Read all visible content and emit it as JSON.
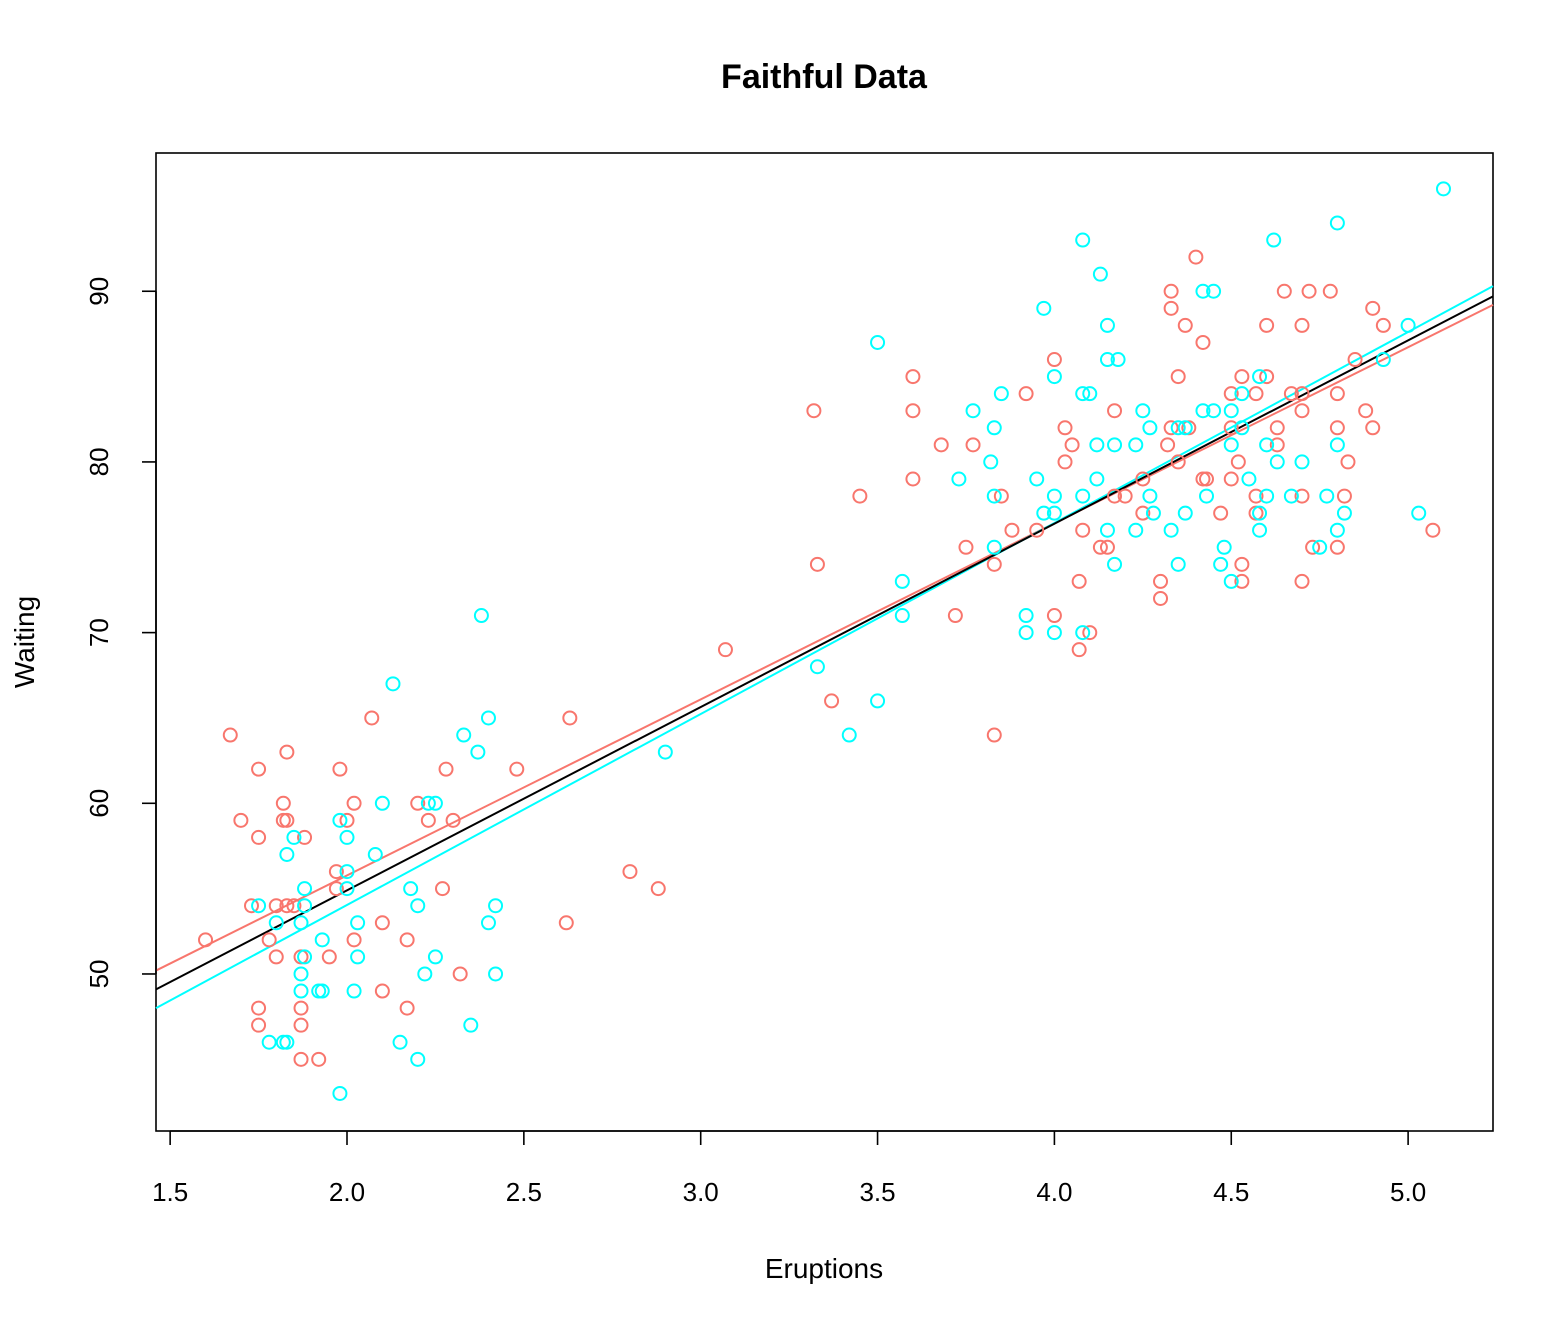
{
  "chart_data": {
    "type": "scatter",
    "title": "Faithful Data",
    "xlabel": "Eruptions",
    "ylabel": "Waiting",
    "xlim": [
      1.46,
      5.24
    ],
    "ylim": [
      40.8,
      98.1
    ],
    "x_ticks": [
      1.5,
      2.0,
      2.5,
      3.0,
      3.5,
      4.0,
      4.5,
      5.0
    ],
    "x_tick_labels": [
      "1.5",
      "2.0",
      "2.5",
      "3.0",
      "3.5",
      "4.0",
      "4.5",
      "5.0"
    ],
    "y_ticks": [
      50,
      60,
      70,
      80,
      90
    ],
    "y_tick_labels": [
      "50",
      "60",
      "70",
      "80",
      "90"
    ],
    "grid": false,
    "legend": "none",
    "colors": {
      "salmon": "#F8766D",
      "cyan": "#00FFFF",
      "black": "#000000"
    },
    "series": [
      {
        "color": "#F8766D",
        "marker": "open-circle",
        "points": [
          [
            1.6,
            52
          ],
          [
            1.67,
            64
          ],
          [
            1.7,
            59
          ],
          [
            1.73,
            54
          ],
          [
            1.75,
            62
          ],
          [
            1.75,
            58
          ],
          [
            1.75,
            48
          ],
          [
            1.75,
            47
          ],
          [
            1.78,
            52
          ],
          [
            1.8,
            54
          ],
          [
            1.8,
            51
          ],
          [
            1.82,
            60
          ],
          [
            1.82,
            59
          ],
          [
            1.83,
            59
          ],
          [
            1.83,
            63
          ],
          [
            1.83,
            54
          ],
          [
            1.85,
            54
          ],
          [
            1.87,
            51
          ],
          [
            1.87,
            48
          ],
          [
            1.87,
            47
          ],
          [
            1.87,
            45
          ],
          [
            1.88,
            58
          ],
          [
            1.92,
            45
          ],
          [
            1.95,
            51
          ],
          [
            1.97,
            56
          ],
          [
            1.97,
            55
          ],
          [
            1.98,
            62
          ],
          [
            2.0,
            59
          ],
          [
            2.02,
            60
          ],
          [
            2.02,
            52
          ],
          [
            2.07,
            65
          ],
          [
            2.1,
            53
          ],
          [
            2.1,
            49
          ],
          [
            2.17,
            52
          ],
          [
            2.17,
            48
          ],
          [
            2.2,
            60
          ],
          [
            2.23,
            59
          ],
          [
            2.27,
            55
          ],
          [
            2.28,
            62
          ],
          [
            2.3,
            59
          ],
          [
            2.32,
            50
          ],
          [
            2.48,
            62
          ],
          [
            2.62,
            53
          ],
          [
            2.63,
            65
          ],
          [
            2.8,
            56
          ],
          [
            2.88,
            55
          ],
          [
            3.07,
            69
          ],
          [
            3.32,
            83
          ],
          [
            3.33,
            74
          ],
          [
            3.37,
            66
          ],
          [
            3.45,
            78
          ],
          [
            3.6,
            85
          ],
          [
            3.6,
            83
          ],
          [
            3.6,
            79
          ],
          [
            3.68,
            81
          ],
          [
            3.72,
            71
          ],
          [
            3.75,
            75
          ],
          [
            3.77,
            81
          ],
          [
            3.83,
            74
          ],
          [
            3.83,
            64
          ],
          [
            3.85,
            78
          ],
          [
            3.88,
            76
          ],
          [
            3.92,
            84
          ],
          [
            3.95,
            76
          ],
          [
            4.0,
            86
          ],
          [
            4.0,
            71
          ],
          [
            4.03,
            82
          ],
          [
            4.03,
            80
          ],
          [
            4.05,
            81
          ],
          [
            4.07,
            73
          ],
          [
            4.07,
            69
          ],
          [
            4.08,
            76
          ],
          [
            4.1,
            70
          ],
          [
            4.13,
            75
          ],
          [
            4.15,
            75
          ],
          [
            4.17,
            83
          ],
          [
            4.17,
            78
          ],
          [
            4.2,
            78
          ],
          [
            4.25,
            79
          ],
          [
            4.25,
            77
          ],
          [
            4.3,
            73
          ],
          [
            4.3,
            72
          ],
          [
            4.32,
            81
          ],
          [
            4.33,
            90
          ],
          [
            4.33,
            89
          ],
          [
            4.33,
            82
          ],
          [
            4.35,
            85
          ],
          [
            4.35,
            80
          ],
          [
            4.37,
            88
          ],
          [
            4.38,
            82
          ],
          [
            4.4,
            92
          ],
          [
            4.42,
            87
          ],
          [
            4.42,
            79
          ],
          [
            4.43,
            79
          ],
          [
            4.47,
            77
          ],
          [
            4.5,
            84
          ],
          [
            4.5,
            82
          ],
          [
            4.5,
            79
          ],
          [
            4.52,
            80
          ],
          [
            4.53,
            85
          ],
          [
            4.53,
            74
          ],
          [
            4.53,
            73
          ],
          [
            4.57,
            84
          ],
          [
            4.57,
            78
          ],
          [
            4.57,
            77
          ],
          [
            4.6,
            88
          ],
          [
            4.6,
            85
          ],
          [
            4.63,
            82
          ],
          [
            4.63,
            81
          ],
          [
            4.65,
            90
          ],
          [
            4.67,
            84
          ],
          [
            4.7,
            88
          ],
          [
            4.7,
            84
          ],
          [
            4.7,
            83
          ],
          [
            4.7,
            78
          ],
          [
            4.7,
            73
          ],
          [
            4.72,
            90
          ],
          [
            4.73,
            75
          ],
          [
            4.78,
            90
          ],
          [
            4.8,
            84
          ],
          [
            4.8,
            82
          ],
          [
            4.8,
            75
          ],
          [
            4.82,
            78
          ],
          [
            4.83,
            80
          ],
          [
            4.85,
            86
          ],
          [
            4.88,
            83
          ],
          [
            4.9,
            89
          ],
          [
            4.9,
            82
          ],
          [
            4.93,
            88
          ],
          [
            5.07,
            76
          ]
        ]
      },
      {
        "color": "#00FFFF",
        "marker": "open-circle",
        "points": [
          [
            1.75,
            54
          ],
          [
            1.78,
            46
          ],
          [
            1.8,
            53
          ],
          [
            1.82,
            46
          ],
          [
            1.83,
            57
          ],
          [
            1.83,
            46
          ],
          [
            1.85,
            58
          ],
          [
            1.87,
            53
          ],
          [
            1.87,
            50
          ],
          [
            1.87,
            49
          ],
          [
            1.88,
            55
          ],
          [
            1.88,
            54
          ],
          [
            1.88,
            51
          ],
          [
            1.92,
            49
          ],
          [
            1.93,
            52
          ],
          [
            1.93,
            49
          ],
          [
            1.98,
            59
          ],
          [
            1.98,
            43
          ],
          [
            2.0,
            58
          ],
          [
            2.0,
            56
          ],
          [
            2.0,
            55
          ],
          [
            2.02,
            49
          ],
          [
            2.03,
            53
          ],
          [
            2.03,
            51
          ],
          [
            2.08,
            57
          ],
          [
            2.1,
            60
          ],
          [
            2.13,
            67
          ],
          [
            2.15,
            46
          ],
          [
            2.18,
            55
          ],
          [
            2.2,
            54
          ],
          [
            2.2,
            45
          ],
          [
            2.22,
            50
          ],
          [
            2.23,
            60
          ],
          [
            2.25,
            60
          ],
          [
            2.25,
            51
          ],
          [
            2.33,
            64
          ],
          [
            2.35,
            47
          ],
          [
            2.37,
            63
          ],
          [
            2.38,
            71
          ],
          [
            2.4,
            65
          ],
          [
            2.4,
            53
          ],
          [
            2.42,
            54
          ],
          [
            2.42,
            50
          ],
          [
            2.9,
            63
          ],
          [
            3.33,
            68
          ],
          [
            3.42,
            64
          ],
          [
            3.5,
            87
          ],
          [
            3.5,
            66
          ],
          [
            3.57,
            73
          ],
          [
            3.57,
            71
          ],
          [
            3.73,
            79
          ],
          [
            3.77,
            83
          ],
          [
            3.82,
            80
          ],
          [
            3.83,
            82
          ],
          [
            3.83,
            78
          ],
          [
            3.83,
            75
          ],
          [
            3.85,
            84
          ],
          [
            3.92,
            71
          ],
          [
            3.92,
            70
          ],
          [
            3.95,
            79
          ],
          [
            3.97,
            89
          ],
          [
            3.97,
            77
          ],
          [
            4.0,
            85
          ],
          [
            4.0,
            78
          ],
          [
            4.0,
            77
          ],
          [
            4.0,
            70
          ],
          [
            4.08,
            93
          ],
          [
            4.08,
            84
          ],
          [
            4.08,
            78
          ],
          [
            4.08,
            70
          ],
          [
            4.1,
            84
          ],
          [
            4.12,
            81
          ],
          [
            4.12,
            79
          ],
          [
            4.13,
            91
          ],
          [
            4.15,
            88
          ],
          [
            4.15,
            86
          ],
          [
            4.15,
            76
          ],
          [
            4.17,
            81
          ],
          [
            4.17,
            74
          ],
          [
            4.18,
            86
          ],
          [
            4.23,
            81
          ],
          [
            4.23,
            76
          ],
          [
            4.25,
            83
          ],
          [
            4.27,
            82
          ],
          [
            4.27,
            78
          ],
          [
            4.28,
            77
          ],
          [
            4.33,
            76
          ],
          [
            4.35,
            82
          ],
          [
            4.35,
            74
          ],
          [
            4.37,
            82
          ],
          [
            4.37,
            77
          ],
          [
            4.42,
            90
          ],
          [
            4.42,
            83
          ],
          [
            4.43,
            78
          ],
          [
            4.45,
            90
          ],
          [
            4.45,
            83
          ],
          [
            4.47,
            74
          ],
          [
            4.48,
            75
          ],
          [
            4.5,
            83
          ],
          [
            4.5,
            81
          ],
          [
            4.5,
            73
          ],
          [
            4.53,
            84
          ],
          [
            4.53,
            82
          ],
          [
            4.55,
            79
          ],
          [
            4.58,
            85
          ],
          [
            4.58,
            77
          ],
          [
            4.58,
            76
          ],
          [
            4.6,
            81
          ],
          [
            4.6,
            78
          ],
          [
            4.62,
            93
          ],
          [
            4.63,
            80
          ],
          [
            4.67,
            78
          ],
          [
            4.7,
            80
          ],
          [
            4.75,
            75
          ],
          [
            4.77,
            78
          ],
          [
            4.8,
            94
          ],
          [
            4.8,
            81
          ],
          [
            4.8,
            76
          ],
          [
            4.82,
            77
          ],
          [
            4.93,
            86
          ],
          [
            5.0,
            88
          ],
          [
            5.03,
            77
          ],
          [
            5.1,
            96
          ]
        ]
      }
    ],
    "fit_lines": [
      {
        "color": "#F8766D",
        "x": [
          1.46,
          5.24
        ],
        "y": [
          50.2,
          89.2
        ]
      },
      {
        "color": "#00FFFF",
        "x": [
          1.46,
          5.24
        ],
        "y": [
          48.0,
          90.3
        ]
      },
      {
        "color": "#000000",
        "x": [
          1.46,
          5.24
        ],
        "y": [
          49.1,
          89.7
        ]
      }
    ]
  }
}
